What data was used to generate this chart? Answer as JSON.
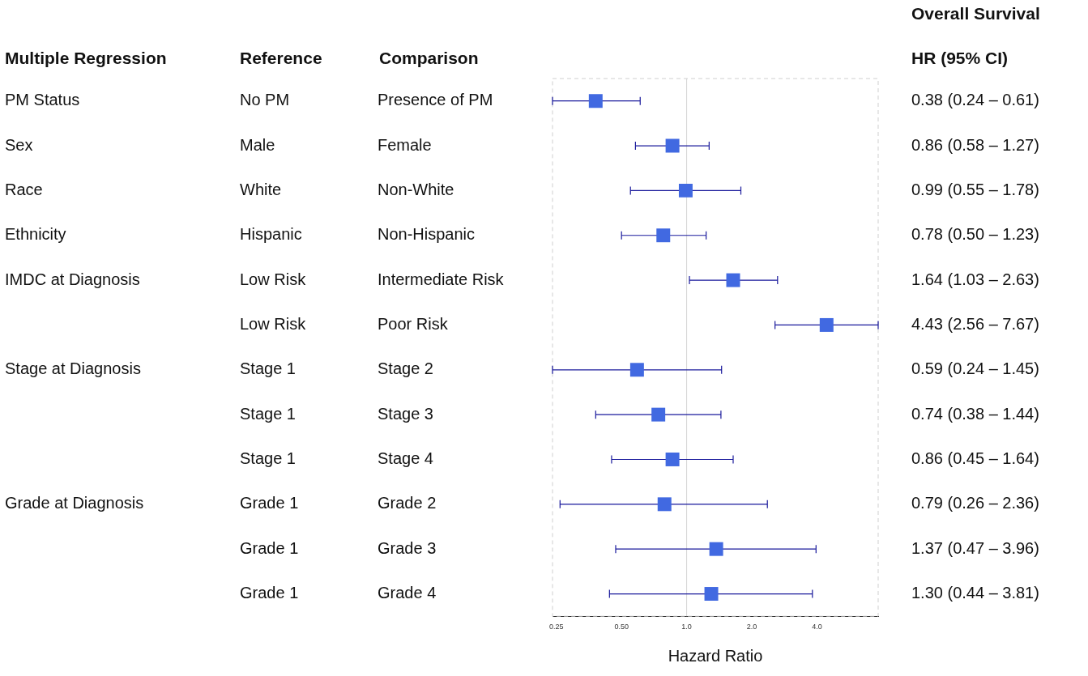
{
  "chart_data": {
    "type": "scatter",
    "orientation": "horizontal",
    "categories": [
      "Presence of PM",
      "Female",
      "Non-White",
      "Non-Hispanic",
      "Intermediate Risk",
      "Poor Risk",
      "Stage 2",
      "Stage 3",
      "Stage 4",
      "Grade 2",
      "Grade 3",
      "Grade 4"
    ],
    "series": [
      {
        "color": "#4169e1",
        "values": [
          0.38,
          0.86,
          0.99,
          0.78,
          1.64,
          4.43,
          0.59,
          0.74,
          0.86,
          0.79,
          1.37,
          1.3
        ],
        "errors": [
          [
            0.24,
            0.61
          ],
          [
            0.58,
            1.27
          ],
          [
            0.55,
            1.78
          ],
          [
            0.5,
            1.23
          ],
          [
            1.03,
            2.63
          ],
          [
            2.56,
            7.67
          ],
          [
            0.24,
            1.45
          ],
          [
            0.38,
            1.44
          ],
          [
            0.45,
            1.64
          ],
          [
            0.26,
            2.36
          ],
          [
            0.47,
            3.96
          ],
          [
            0.44,
            3.81
          ]
        ],
        "value_labels": [
          "0.38 (0.24 – 0.61)",
          "0.86 (0.58 – 1.27)",
          "0.99 (0.55 – 1.78)",
          "0.78 (0.50 – 1.23)",
          "1.64 (1.03 – 2.63)",
          "4.43 (2.56 – 7.67)",
          "0.59 (0.24 – 1.45)",
          "0.74 (0.38 – 1.44)",
          "0.86 (0.45 – 1.64)",
          "0.79 (0.26 – 2.36)",
          "1.37 (0.47 – 3.96)",
          "1.30 (0.44 – 3.81)"
        ]
      }
    ],
    "xlabel": "Hazard Ratio",
    "log": "x",
    "xlim": [
      0.24,
      7.67
    ],
    "xticks": [
      {
        "value": 0.25,
        "label": "0.25"
      },
      {
        "value": 0.5,
        "label": "0.50"
      },
      {
        "value": 1,
        "label": "1.0"
      },
      {
        "value": 2,
        "label": "2.0"
      },
      {
        "value": 4,
        "label": "4.0"
      }
    ],
    "ref_lines": [
      {
        "axis": "x",
        "value": 1,
        "color": "#d3d3d3"
      }
    ],
    "marker": "square",
    "grid": false,
    "legend": false,
    "annotations": [
      "Multiple Regression",
      "Reference",
      "Comparison",
      "HR (95% CI)",
      "Overall Survival",
      "PM Status",
      "No PM",
      "Sex",
      "Male",
      "Race",
      "White",
      "Ethnicity",
      "Hispanic",
      "IMDC at Diagnosis",
      "Low Risk",
      "Low Risk",
      "Stage at Diagnosis",
      "Stage 1",
      "Stage 1",
      "Stage 1",
      "Grade at Diagnosis",
      "Grade 1",
      "Grade 1",
      "Grade 1"
    ]
  }
}
